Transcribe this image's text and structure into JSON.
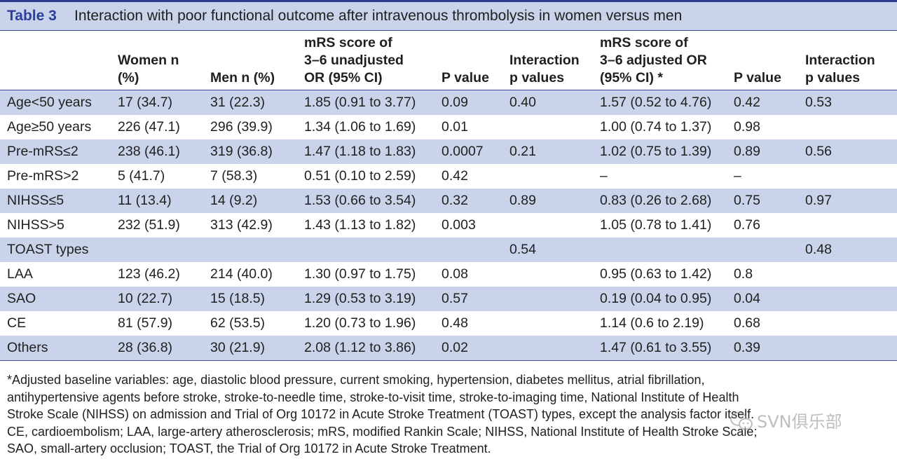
{
  "title": {
    "label": "Table 3",
    "text": "Interaction with poor functional outcome after intravenous thrombolysis in women versus men"
  },
  "headers": {
    "subgroup": "",
    "women_line1": "Women n",
    "women_line2": "(%)",
    "men": "Men n (%)",
    "unadj_line1": "mRS score of",
    "unadj_line2": "3–6 unadjusted",
    "unadj_line3": "OR (95% CI)",
    "p1": "P value",
    "int1_line1": "Interaction",
    "int1_line2": "p values",
    "adj_line1": "mRS score of",
    "adj_line2": "3–6 adjusted OR",
    "adj_line3": "(95% CI) *",
    "p2": "P value",
    "int2_line1": "Interaction",
    "int2_line2": "p values"
  },
  "rows": [
    {
      "subgroup": "Age<50 years",
      "women": "17 (34.7)",
      "men": "31 (22.3)",
      "unadj": "1.85 (0.91 to 3.77)",
      "p1": "0.09",
      "int1": "0.40",
      "adj": "1.57 (0.52 to 4.76)",
      "p2": "0.42",
      "int2": "0.53"
    },
    {
      "subgroup": "Age≥50 years",
      "women": "226 (47.1)",
      "men": "296 (39.9)",
      "unadj": "1.34 (1.06 to 1.69)",
      "p1": "0.01",
      "int1": "",
      "adj": "1.00 (0.74 to 1.37)",
      "p2": "0.98",
      "int2": ""
    },
    {
      "subgroup": "Pre-mRS≤2",
      "women": "238 (46.1)",
      "men": "319 (36.8)",
      "unadj": "1.47 (1.18 to 1.83)",
      "p1": "0.0007",
      "int1": "0.21",
      "adj": "1.02 (0.75 to 1.39)",
      "p2": "0.89",
      "int2": "0.56"
    },
    {
      "subgroup": "Pre-mRS>2",
      "women": "5 (41.7)",
      "men": "7 (58.3)",
      "unadj": "0.51 (0.10 to 2.59)",
      "p1": "0.42",
      "int1": "",
      "adj": "–",
      "p2": "–",
      "int2": ""
    },
    {
      "subgroup": "NIHSS≤5",
      "women": "11 (13.4)",
      "men": "14 (9.2)",
      "unadj": "1.53 (0.66 to 3.54)",
      "p1": "0.32",
      "int1": "0.89",
      "adj": "0.83 (0.26 to 2.68)",
      "p2": "0.75",
      "int2": "0.97"
    },
    {
      "subgroup": "NIHSS>5",
      "women": "232 (51.9)",
      "men": "313 (42.9)",
      "unadj": "1.43 (1.13 to 1.82)",
      "p1": "0.003",
      "int1": "",
      "adj": "1.05 (0.78 to 1.41)",
      "p2": "0.76",
      "int2": ""
    },
    {
      "subgroup": "TOAST types",
      "women": "",
      "men": "",
      "unadj": "",
      "p1": "",
      "int1": "0.54",
      "adj": "",
      "p2": "",
      "int2": "0.48"
    },
    {
      "subgroup": "LAA",
      "women": "123 (46.2)",
      "men": "214 (40.0)",
      "unadj": "1.30 (0.97 to 1.75)",
      "p1": "0.08",
      "int1": "",
      "adj": "0.95 (0.63 to 1.42)",
      "p2": "0.8",
      "int2": ""
    },
    {
      "subgroup": "SAO",
      "women": "10 (22.7)",
      "men": "15 (18.5)",
      "unadj": "1.29 (0.53 to 3.19)",
      "p1": "0.57",
      "int1": "",
      "adj": "0.19 (0.04 to 0.95)",
      "p2": "0.04",
      "int2": ""
    },
    {
      "subgroup": "CE",
      "women": "81 (57.9)",
      "men": "62 (53.5)",
      "unadj": "1.20 (0.73 to 1.96)",
      "p1": "0.48",
      "int1": "",
      "adj": "1.14 (0.6 to 2.19)",
      "p2": "0.68",
      "int2": ""
    },
    {
      "subgroup": "Others",
      "women": "28 (36.8)",
      "men": "30 (21.9)",
      "unadj": "2.08 (1.12 to 3.86)",
      "p1": "0.02",
      "int1": "",
      "adj": "1.47 (0.61 to 3.55)",
      "p2": "0.39",
      "int2": ""
    }
  ],
  "footnote": {
    "line1": "*Adjusted baseline variables: age, diastolic blood pressure, current smoking, hypertension, diabetes mellitus, atrial fibrillation,",
    "line2": "antihypertensive agents before stroke, stroke-to-needle time, stroke-to-visit time, stroke-to-imaging time, National Institute of Health",
    "line3": "Stroke Scale (NIHSS) on admission and Trial of Org 10172 in Acute Stroke Treatment (TOAST) types, except the analysis factor itself.",
    "line4": "CE, cardioembolism; LAA, large-artery atherosclerosis; mRS, modified Rankin Scale; NIHSS, National Institute of Health Stroke Scale;",
    "line5": "SAO, small-artery occlusion; TOAST, the Trial of Org 10172 in Acute Stroke Treatment."
  },
  "watermark": {
    "icon": "wechat-logo-icon",
    "text": "SVN俱乐部"
  }
}
